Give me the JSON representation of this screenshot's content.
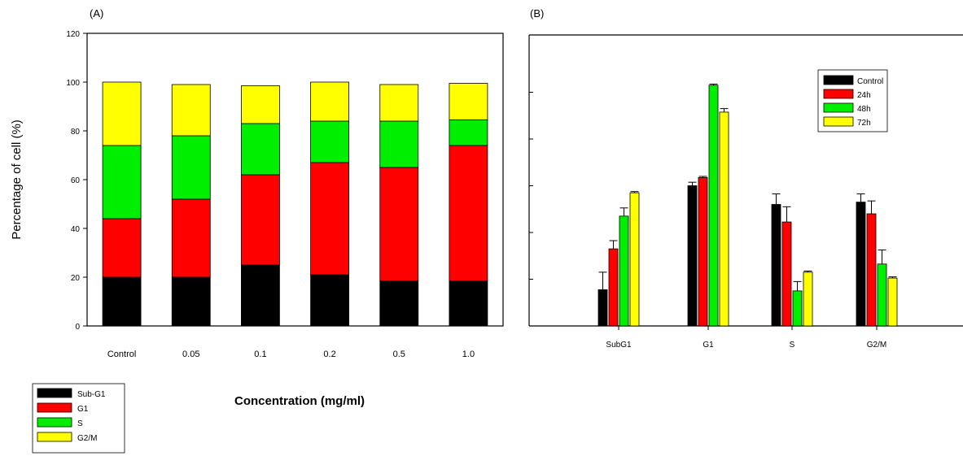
{
  "chart_data": [
    {
      "type": "bar",
      "stacked": true,
      "panel_label": "(A)",
      "title": "",
      "xlabel": "Concentration (mg/ml)",
      "ylabel": "Percentage of cell (%)",
      "ylim": [
        0,
        120
      ],
      "yticks": [
        0,
        20,
        40,
        60,
        80,
        100,
        120
      ],
      "categories": [
        "Control",
        "0.05",
        "0.1",
        "0.2",
        "0.5",
        "1.0"
      ],
      "series": [
        {
          "name": "Sub-G1",
          "color": "#000000",
          "values": [
            20,
            20,
            25,
            21,
            18.5,
            18.5
          ]
        },
        {
          "name": "G1",
          "color": "#ff0000",
          "values": [
            24,
            32,
            37,
            46,
            46.5,
            55.5
          ]
        },
        {
          "name": "S",
          "color": "#00ee00",
          "values": [
            30,
            26,
            21,
            17,
            19,
            10.5
          ]
        },
        {
          "name": "G2/M",
          "color": "#ffff00",
          "values": [
            26,
            21,
            15.5,
            16,
            15,
            15
          ]
        }
      ],
      "legend": {
        "placement": "bottom-left",
        "entries": [
          "Sub-G1",
          "G1",
          "S",
          "G2/M"
        ]
      },
      "grid": false
    },
    {
      "type": "bar",
      "panel_label": "(B)",
      "title": "",
      "xlabel": "",
      "ylabel": "",
      "ylim": [
        0,
        120
      ],
      "categories": [
        "SubG1",
        "G1",
        "S",
        "G2/M"
      ],
      "series": [
        {
          "name": "Control",
          "color": "#000000",
          "values": [
            15.5,
            60,
            52,
            53
          ],
          "errors": [
            7.5,
            1.5,
            4.5,
            3.5
          ]
        },
        {
          "name": "24h",
          "color": "#ff0000",
          "values": [
            33,
            63.5,
            44.5,
            48
          ],
          "errors": [
            3.5,
            0.5,
            6.5,
            5.5
          ]
        },
        {
          "name": "48h",
          "color": "#00ee00",
          "values": [
            47,
            103,
            15,
            26.5
          ],
          "errors": [
            3.5,
            0.5,
            4,
            6
          ]
        },
        {
          "name": "72h",
          "color": "#ffff00",
          "values": [
            57,
            91.5,
            23,
            20.5
          ],
          "errors": [
            0.5,
            1.5,
            0.5,
            0.5
          ]
        }
      ],
      "legend": {
        "placement": "top-right",
        "entries": [
          "Control",
          "24h",
          "48h",
          "72h"
        ]
      },
      "grid": false
    }
  ]
}
